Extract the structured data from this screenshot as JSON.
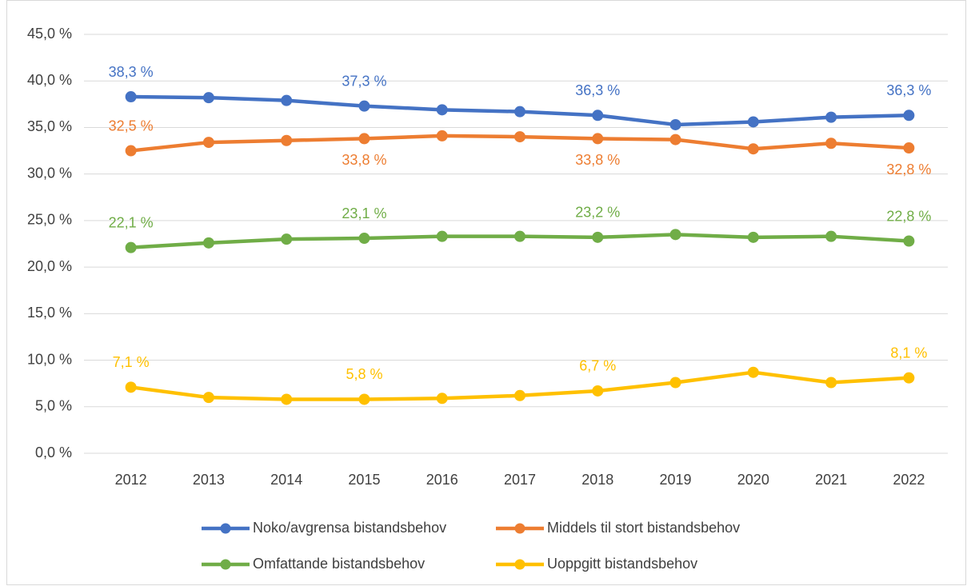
{
  "chart_data": {
    "type": "line",
    "categories": [
      "2012",
      "2013",
      "2014",
      "2015",
      "2016",
      "2017",
      "2018",
      "2019",
      "2020",
      "2021",
      "2022"
    ],
    "series": [
      {
        "name": "Noko/avgrensa bistandsbehov",
        "color": "#4472c4",
        "values": [
          38.3,
          38.2,
          37.9,
          37.3,
          36.9,
          36.7,
          36.3,
          35.3,
          35.6,
          36.1,
          36.3
        ],
        "value_labels": [
          "38,3 %",
          null,
          null,
          "37,3 %",
          null,
          null,
          "36,3 %",
          null,
          null,
          null,
          "36,3 %"
        ]
      },
      {
        "name": "Middels til stort bistandsbehov",
        "color": "#ed7d31",
        "values": [
          32.5,
          33.4,
          33.6,
          33.8,
          34.1,
          34.0,
          33.8,
          33.7,
          32.7,
          33.3,
          32.8
        ],
        "value_labels": [
          "32,5 %",
          null,
          null,
          "33,8 %",
          null,
          null,
          "33,8 %",
          null,
          null,
          null,
          "32,8 %"
        ]
      },
      {
        "name": "Omfattande bistandsbehov",
        "color": "#70ad47",
        "values": [
          22.1,
          22.6,
          23.0,
          23.1,
          23.3,
          23.3,
          23.2,
          23.5,
          23.2,
          23.3,
          22.8
        ],
        "value_labels": [
          "22,1 %",
          null,
          null,
          "23,1 %",
          null,
          null,
          "23,2 %",
          null,
          null,
          null,
          "22,8 %"
        ]
      },
      {
        "name": "Uoppgitt bistandsbehov",
        "color": "#ffc000",
        "values": [
          7.1,
          6.0,
          5.8,
          5.8,
          5.9,
          6.2,
          6.7,
          7.6,
          8.7,
          7.6,
          8.1
        ],
        "value_labels": [
          "7,1 %",
          null,
          null,
          "5,8 %",
          null,
          null,
          "6,7 %",
          null,
          null,
          null,
          "8,1 %"
        ]
      }
    ],
    "ylim": [
      0,
      45
    ],
    "yticks": [
      {
        "value": 0,
        "label": "0,0 %"
      },
      {
        "value": 5,
        "label": "5,0 %"
      },
      {
        "value": 10,
        "label": "10,0 %"
      },
      {
        "value": 15,
        "label": "15,0 %"
      },
      {
        "value": 20,
        "label": "20,0 %"
      },
      {
        "value": 25,
        "label": "25,0 %"
      },
      {
        "value": 30,
        "label": "30,0 %"
      },
      {
        "value": 35,
        "label": "35,0 %"
      },
      {
        "value": 40,
        "label": "40,0 %"
      },
      {
        "value": 45,
        "label": "45,0 %"
      }
    ],
    "grid": true,
    "legend": "bottom"
  }
}
